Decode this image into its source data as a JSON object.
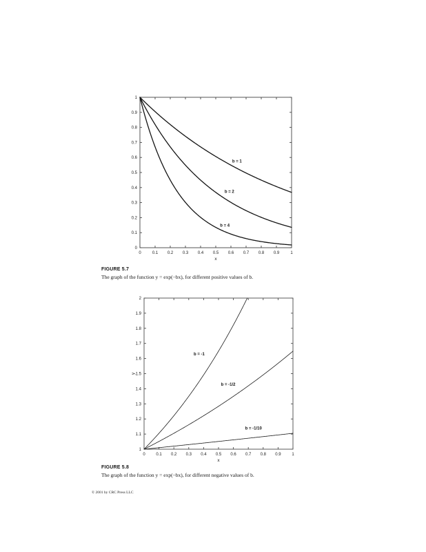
{
  "page": {
    "background": "#ffffff",
    "copyright": "© 2001 by CRC Press LLC"
  },
  "captions": [
    {
      "title": "FIGURE 5.7",
      "text": "The graph of the function y = exp(−bx), for different positive values of b."
    },
    {
      "title": "FIGURE 5.8",
      "text": "The graph of the function y = exp(−bx), for different negative values of b."
    }
  ],
  "chart_data": [
    {
      "type": "line",
      "figure": "5.7",
      "title": "",
      "xlabel": "x",
      "ylabel": "",
      "xlim": [
        0,
        1
      ],
      "ylim": [
        0,
        1
      ],
      "grid": false,
      "legend": "inline-curve-labels",
      "axis_color": "#444444",
      "line_color": "#141414",
      "line_width": 1.3,
      "xticks": [
        "0",
        "0.1",
        "0.2",
        "0.3",
        "0.4",
        "0.5",
        "0.6",
        "0.7",
        "0.8",
        "0.9",
        "1"
      ],
      "yticks": [
        "0",
        "0.1",
        "0.2",
        "0.3",
        "0.4",
        "0.5",
        "0.6",
        "0.7",
        "0.8",
        "0.9",
        "1"
      ],
      "x": [
        0,
        0.1,
        0.2,
        0.3,
        0.4,
        0.5,
        0.6,
        0.7,
        0.8,
        0.9,
        1
      ],
      "series": [
        {
          "name": "b = 1",
          "b": 1,
          "values": [
            1,
            0.905,
            0.819,
            0.741,
            0.67,
            0.607,
            0.549,
            0.497,
            0.449,
            0.407,
            0.368
          ],
          "label_pos": {
            "x": 0.64,
            "y": 0.575
          }
        },
        {
          "name": "b = 2",
          "b": 2,
          "values": [
            1,
            0.819,
            0.67,
            0.549,
            0.449,
            0.368,
            0.301,
            0.247,
            0.202,
            0.165,
            0.135
          ],
          "label_pos": {
            "x": 0.59,
            "y": 0.375
          }
        },
        {
          "name": "b = 4",
          "b": 4,
          "values": [
            1,
            0.67,
            0.449,
            0.301,
            0.202,
            0.135,
            0.091,
            0.061,
            0.041,
            0.027,
            0.018
          ],
          "label_pos": {
            "x": 0.56,
            "y": 0.15
          }
        }
      ]
    },
    {
      "type": "line",
      "figure": "5.8",
      "title": "",
      "xlabel": "x",
      "ylabel": "y",
      "xlim": [
        0,
        1
      ],
      "ylim": [
        1,
        2
      ],
      "grid": false,
      "legend": "inline-curve-labels",
      "axis_color": "#4a4a4a",
      "line_color": "#1a1a1a",
      "line_width": 0.8,
      "xticks": [
        "0",
        "0.1",
        "0.2",
        "0.3",
        "0.4",
        "0.5",
        "0.6",
        "0.7",
        "0.8",
        "0.9",
        "1"
      ],
      "yticks": [
        "1",
        "1.1",
        "1.2",
        "1.3",
        "1.4",
        "1.5",
        "1.6",
        "1.7",
        "1.8",
        "1.9",
        "2"
      ],
      "x": [
        0,
        0.1,
        0.2,
        0.3,
        0.4,
        0.5,
        0.6,
        0.7,
        0.8,
        0.9,
        1
      ],
      "series": [
        {
          "name": "b = -1",
          "b": -1,
          "values": [
            1,
            1.105,
            1.221,
            1.35,
            1.492,
            1.649,
            1.822,
            2.014,
            2.226,
            2.46,
            2.718
          ],
          "label_pos": {
            "x": 0.37,
            "y": 1.63
          }
        },
        {
          "name": "b = -1/2",
          "b": -0.5,
          "values": [
            1,
            1.051,
            1.105,
            1.162,
            1.221,
            1.284,
            1.35,
            1.419,
            1.492,
            1.568,
            1.649
          ],
          "label_pos": {
            "x": 0.565,
            "y": 1.43
          }
        },
        {
          "name": "b = -1/10",
          "b": -0.1,
          "values": [
            1,
            1.01,
            1.02,
            1.03,
            1.041,
            1.051,
            1.062,
            1.073,
            1.083,
            1.094,
            1.105
          ],
          "label_pos": {
            "x": 0.735,
            "y": 1.14
          }
        }
      ]
    }
  ]
}
